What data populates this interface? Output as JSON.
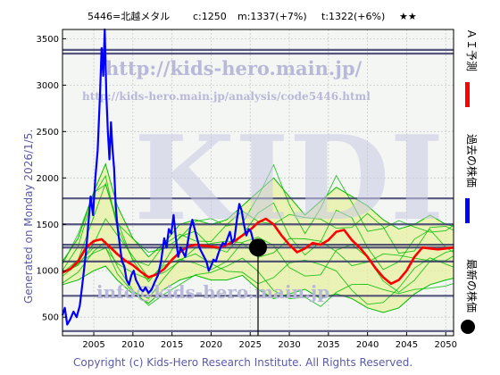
{
  "header": {
    "code_name": "5446=北越メタル",
    "c_label": "c:1250",
    "m_label": "m:1337(+7%)",
    "t_label": "t:1322(+6%)",
    "stars": "★★"
  },
  "left_note": "Generated on Monday 2026/1/5.",
  "footer": "Copyright (c) Kids-Hero Research Institute. All Rights Reserved.",
  "watermarks": {
    "url1": "http://kids-hero.main.jp/",
    "url2": "http://kids-hero.main.jp/analysis/code5446.html",
    "big": "KIDI",
    "email": "info@kids-hero.main.jp"
  },
  "legend": {
    "ai": "ＡＩ予測",
    "past": "過去の株価",
    "latest": "最新の株価"
  },
  "colors": {
    "ai": "#ff0000",
    "past": "#0000ff",
    "latest": "#000000",
    "band_green": "#00bb00",
    "band_fill": "#e8f0a0",
    "hline": "#3a3a6a"
  },
  "chart_data": {
    "type": "line",
    "xlim": [
      2001,
      2051
    ],
    "ylim": [
      300,
      3600
    ],
    "x_ticks": [
      2005,
      2010,
      2015,
      2020,
      2025,
      2030,
      2035,
      2040,
      2045,
      2050
    ],
    "y_ticks": [
      500,
      1000,
      1500,
      2000,
      2500,
      3000,
      3500
    ],
    "grid": true,
    "horizontal_levels": [
      3380,
      3340,
      1780,
      1500,
      1280,
      1250,
      1100,
      730,
      350
    ],
    "current_marker": {
      "x": 2026.0,
      "y": 1250
    },
    "past_price": [
      [
        2001.0,
        520
      ],
      [
        2001.3,
        600
      ],
      [
        2001.6,
        420
      ],
      [
        2002.0,
        480
      ],
      [
        2002.4,
        560
      ],
      [
        2002.8,
        500
      ],
      [
        2003.2,
        620
      ],
      [
        2003.6,
        900
      ],
      [
        2004.0,
        1200
      ],
      [
        2004.3,
        1500
      ],
      [
        2004.6,
        1800
      ],
      [
        2004.9,
        1600
      ],
      [
        2005.2,
        2000
      ],
      [
        2005.5,
        2300
      ],
      [
        2005.8,
        2900
      ],
      [
        2006.0,
        3400
      ],
      [
        2006.2,
        3100
      ],
      [
        2006.4,
        3600
      ],
      [
        2006.6,
        2900
      ],
      [
        2006.8,
        2500
      ],
      [
        2007.0,
        2200
      ],
      [
        2007.2,
        2600
      ],
      [
        2007.4,
        2300
      ],
      [
        2007.6,
        2100
      ],
      [
        2007.8,
        1700
      ],
      [
        2008.0,
        1500
      ],
      [
        2008.3,
        1300
      ],
      [
        2008.6,
        1100
      ],
      [
        2008.9,
        1050
      ],
      [
        2009.2,
        900
      ],
      [
        2009.5,
        850
      ],
      [
        2009.8,
        950
      ],
      [
        2010.1,
        1000
      ],
      [
        2010.4,
        900
      ],
      [
        2010.7,
        850
      ],
      [
        2011.0,
        800
      ],
      [
        2011.3,
        780
      ],
      [
        2011.6,
        820
      ],
      [
        2012.0,
        760
      ],
      [
        2012.4,
        800
      ],
      [
        2012.8,
        880
      ],
      [
        2013.2,
        950
      ],
      [
        2013.6,
        1100
      ],
      [
        2014.0,
        1350
      ],
      [
        2014.3,
        1250
      ],
      [
        2014.6,
        1450
      ],
      [
        2014.9,
        1400
      ],
      [
        2015.2,
        1600
      ],
      [
        2015.5,
        1350
      ],
      [
        2015.8,
        1150
      ],
      [
        2016.1,
        1250
      ],
      [
        2016.4,
        1200
      ],
      [
        2016.7,
        1150
      ],
      [
        2017.0,
        1300
      ],
      [
        2017.3,
        1450
      ],
      [
        2017.6,
        1550
      ],
      [
        2017.9,
        1450
      ],
      [
        2018.2,
        1350
      ],
      [
        2018.5,
        1250
      ],
      [
        2018.8,
        1200
      ],
      [
        2019.1,
        1150
      ],
      [
        2019.4,
        1100
      ],
      [
        2019.7,
        1000
      ],
      [
        2020.0,
        1050
      ],
      [
        2020.3,
        1120
      ],
      [
        2020.6,
        1100
      ],
      [
        2020.9,
        1180
      ],
      [
        2021.2,
        1250
      ],
      [
        2021.5,
        1300
      ],
      [
        2021.8,
        1280
      ],
      [
        2022.1,
        1350
      ],
      [
        2022.4,
        1420
      ],
      [
        2022.7,
        1300
      ],
      [
        2023.0,
        1350
      ],
      [
        2023.3,
        1550
      ],
      [
        2023.6,
        1720
      ],
      [
        2023.9,
        1650
      ],
      [
        2024.2,
        1500
      ],
      [
        2024.5,
        1380
      ],
      [
        2024.8,
        1450
      ],
      [
        2025.1,
        1420
      ],
      [
        2025.4,
        1320
      ],
      [
        2025.7,
        1280
      ],
      [
        2026.0,
        1250
      ]
    ],
    "ai_forecast": [
      [
        2001.0,
        980
      ],
      [
        2002.0,
        1020
      ],
      [
        2003.0,
        1100
      ],
      [
        2004.0,
        1250
      ],
      [
        2005.0,
        1320
      ],
      [
        2006.0,
        1340
      ],
      [
        2007.0,
        1260
      ],
      [
        2008.0,
        1180
      ],
      [
        2009.0,
        1110
      ],
      [
        2010.0,
        1060
      ],
      [
        2011.0,
        990
      ],
      [
        2012.0,
        930
      ],
      [
        2013.0,
        960
      ],
      [
        2014.0,
        1020
      ],
      [
        2015.0,
        1120
      ],
      [
        2016.0,
        1200
      ],
      [
        2017.0,
        1260
      ],
      [
        2018.0,
        1280
      ],
      [
        2019.0,
        1270
      ],
      [
        2020.0,
        1260
      ],
      [
        2021.0,
        1250
      ],
      [
        2022.0,
        1280
      ],
      [
        2023.0,
        1320
      ],
      [
        2024.0,
        1380
      ],
      [
        2025.0,
        1440
      ],
      [
        2026.0,
        1520
      ],
      [
        2027.0,
        1560
      ],
      [
        2028.0,
        1500
      ],
      [
        2029.0,
        1380
      ],
      [
        2030.0,
        1280
      ],
      [
        2031.0,
        1200
      ],
      [
        2032.0,
        1240
      ],
      [
        2033.0,
        1300
      ],
      [
        2034.0,
        1280
      ],
      [
        2035.0,
        1330
      ],
      [
        2036.0,
        1420
      ],
      [
        2037.0,
        1440
      ],
      [
        2038.0,
        1330
      ],
      [
        2039.0,
        1250
      ],
      [
        2040.0,
        1150
      ],
      [
        2041.0,
        1030
      ],
      [
        2042.0,
        930
      ],
      [
        2043.0,
        860
      ],
      [
        2044.0,
        900
      ],
      [
        2045.0,
        1000
      ],
      [
        2046.0,
        1150
      ],
      [
        2047.0,
        1250
      ],
      [
        2048.0,
        1240
      ],
      [
        2049.0,
        1230
      ],
      [
        2050.0,
        1240
      ],
      [
        2051.0,
        1250
      ]
    ],
    "band_upper": [
      [
        2001.0,
        1100
      ],
      [
        2003.0,
        1350
      ],
      [
        2005.0,
        1850
      ],
      [
        2006.5,
        2150
      ],
      [
        2008.0,
        1700
      ],
      [
        2010.0,
        1350
      ],
      [
        2012.0,
        1150
      ],
      [
        2014.0,
        1300
      ],
      [
        2016.0,
        1500
      ],
      [
        2018.0,
        1550
      ],
      [
        2020.0,
        1500
      ],
      [
        2022.0,
        1550
      ],
      [
        2024.0,
        1700
      ],
      [
        2026.0,
        1850
      ],
      [
        2028.0,
        2000
      ],
      [
        2030.0,
        1800
      ],
      [
        2032.0,
        1600
      ],
      [
        2034.0,
        1750
      ],
      [
        2036.0,
        1900
      ],
      [
        2038.0,
        1800
      ],
      [
        2040.0,
        1700
      ],
      [
        2042.0,
        1550
      ],
      [
        2044.0,
        1450
      ],
      [
        2046.0,
        1500
      ],
      [
        2048.0,
        1600
      ],
      [
        2050.0,
        1500
      ],
      [
        2051.0,
        1480
      ]
    ],
    "band_lower": [
      [
        2001.0,
        850
      ],
      [
        2003.0,
        900
      ],
      [
        2005.0,
        1000
      ],
      [
        2006.5,
        1050
      ],
      [
        2008.0,
        900
      ],
      [
        2010.0,
        750
      ],
      [
        2012.0,
        650
      ],
      [
        2014.0,
        800
      ],
      [
        2016.0,
        900
      ],
      [
        2018.0,
        950
      ],
      [
        2020.0,
        900
      ],
      [
        2022.0,
        900
      ],
      [
        2024.0,
        950
      ],
      [
        2026.0,
        800
      ],
      [
        2028.0,
        700
      ],
      [
        2030.0,
        750
      ],
      [
        2032.0,
        800
      ],
      [
        2034.0,
        700
      ],
      [
        2036.0,
        750
      ],
      [
        2038.0,
        700
      ],
      [
        2040.0,
        600
      ],
      [
        2042.0,
        550
      ],
      [
        2044.0,
        600
      ],
      [
        2046.0,
        750
      ],
      [
        2048.0,
        850
      ],
      [
        2050.0,
        900
      ],
      [
        2051.0,
        920
      ]
    ]
  }
}
